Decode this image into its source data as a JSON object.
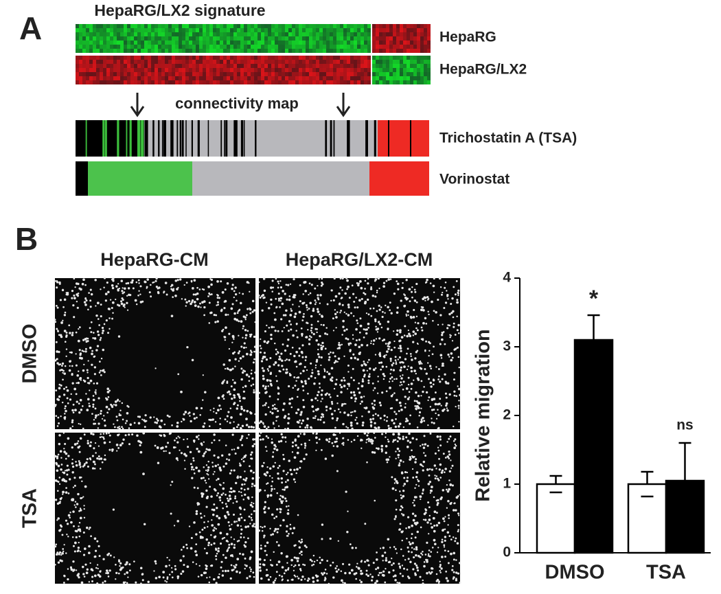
{
  "panel_a": {
    "label": "A",
    "title": "HepaRG/LX2 signature",
    "rows": [
      "HepaRG",
      "HepaRG/LX2"
    ],
    "map_label": "connectivity map",
    "drugs": [
      "Trichostatin A (TSA)",
      "Vorinostat"
    ]
  },
  "panel_b": {
    "label": "B",
    "columns": [
      "HepaRG-CM",
      "HepaRG/LX2-CM"
    ],
    "rows": [
      "DMSO",
      "TSA"
    ]
  },
  "chart_data": {
    "type": "bar",
    "y_label": "Relative migration",
    "categories": [
      "DMSO",
      "TSA"
    ],
    "series": [
      {
        "color": "#ffffff",
        "values": [
          1.0,
          1.0
        ],
        "errors": [
          0.12,
          0.18
        ]
      },
      {
        "color": "#000000",
        "values": [
          3.1,
          1.05
        ],
        "errors": [
          0.36,
          0.55
        ]
      }
    ],
    "annotations": [
      "*",
      "ns"
    ],
    "ylim": [
      0,
      4
    ],
    "yticks": [
      0,
      1,
      2,
      3,
      4
    ]
  }
}
